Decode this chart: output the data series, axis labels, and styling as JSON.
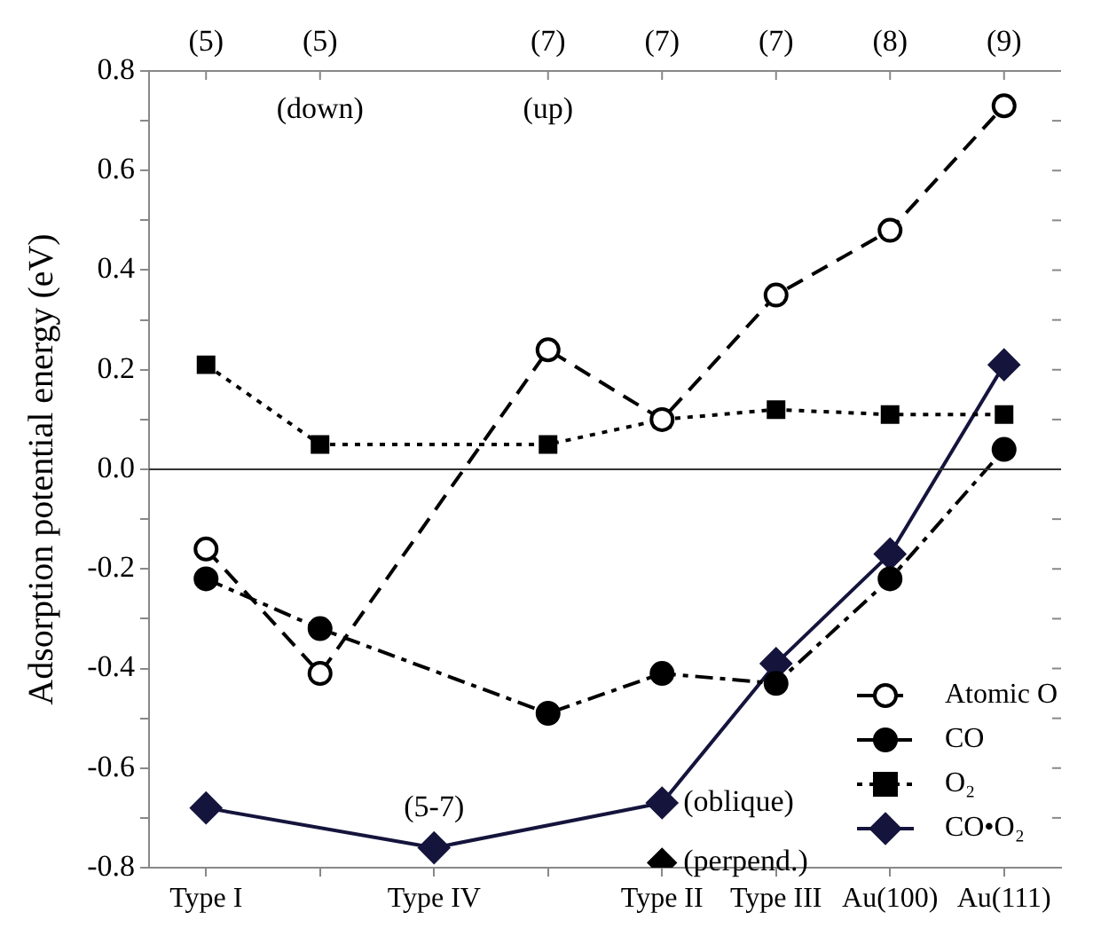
{
  "chart_data": {
    "type": "line",
    "ylabel": "Adsorption potential energy (eV)",
    "categories": [
      "Type I",
      null,
      "Type IV",
      null,
      "Type II",
      "Type III",
      "Au(100)",
      "Au(111)"
    ],
    "series": [
      {
        "name": "Atomic O",
        "color": "#000000",
        "values": [
          -0.16,
          -0.41,
          null,
          0.24,
          0.1,
          0.35,
          0.48,
          0.73
        ],
        "marker": "circle",
        "line_style": "dashed"
      },
      {
        "name": "CO",
        "color": "#000000",
        "values": [
          -0.22,
          -0.32,
          null,
          -0.49,
          -0.41,
          -0.43,
          -0.22,
          0.04
        ],
        "marker": "circle",
        "line_style": "dashdot"
      },
      {
        "name": "O₂",
        "color": "#000000",
        "values": [
          0.21,
          0.05,
          null,
          0.05,
          0.1,
          0.12,
          0.11,
          0.11
        ],
        "marker": "square",
        "line_style": "dotted"
      },
      {
        "name": "CO•O₂",
        "color": "#14143c",
        "values": [
          -0.68,
          null,
          -0.76,
          null,
          -0.67,
          -0.39,
          -0.17,
          0.21
        ],
        "marker": "diamond",
        "line_style": "solid"
      },
      {
        "type": "scatter",
        "color": "#000000",
        "x": [
          "Type II"
        ],
        "values": [
          -0.79
        ],
        "marker": "diamond"
      }
    ],
    "ylim": [
      -0.8,
      0.8
    ],
    "yticks": [
      -0.8,
      {
        "value": -0.7,
        "label": null
      },
      -0.6,
      {
        "value": -0.5,
        "label": null
      },
      -0.4,
      {
        "value": -0.3,
        "label": null
      },
      -0.2,
      {
        "value": -0.1,
        "label": null
      },
      {
        "value": 0,
        "label": "0.0"
      },
      {
        "value": 0.1,
        "label": null
      },
      0.2,
      {
        "value": 0.3,
        "label": null
      },
      0.4,
      {
        "value": 0.5,
        "label": null
      },
      0.6,
      {
        "value": 0.7,
        "label": null
      },
      0.8
    ],
    "ref_lines": [
      {
        "axis": "y",
        "value": 0,
        "color": "#333333"
      }
    ],
    "annotations": [
      "(5)",
      "(5)",
      "(7)",
      "(7)",
      "(7)",
      "(8)",
      "(9)",
      "(down)",
      "(up)",
      {
        "text": "(5-7)",
        "x": "Type IV",
        "y": -0.76
      },
      {
        "text": "(oblique)",
        "x": "Type II",
        "y": -0.67
      },
      {
        "text": "(perpend.)",
        "x": "Type II",
        "y": -0.79
      }
    ],
    "legend": "bottom right"
  }
}
